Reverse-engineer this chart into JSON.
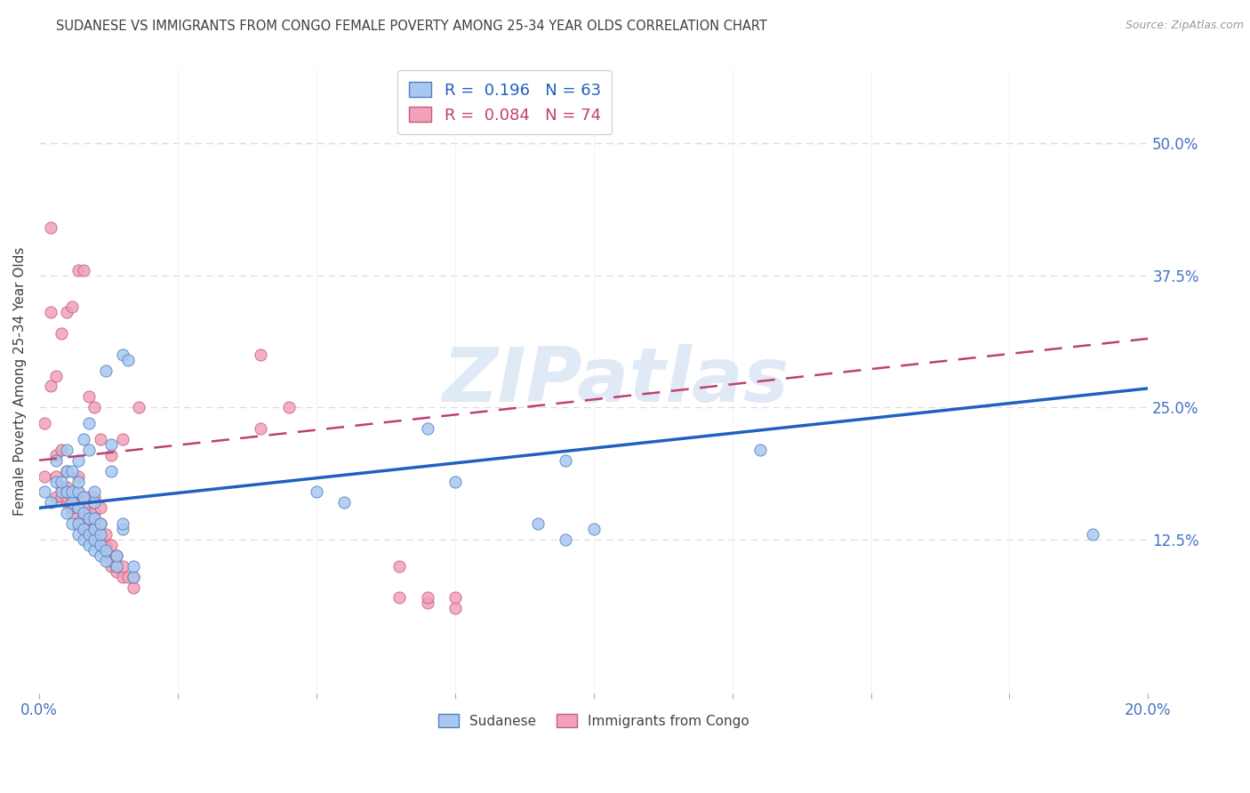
{
  "title": "SUDANESE VS IMMIGRANTS FROM CONGO FEMALE POVERTY AMONG 25-34 YEAR OLDS CORRELATION CHART",
  "source": "Source: ZipAtlas.com",
  "ylabel": "Female Poverty Among 25-34 Year Olds",
  "ytick_labels": [
    "50.0%",
    "37.5%",
    "25.0%",
    "12.5%"
  ],
  "ytick_values": [
    0.5,
    0.375,
    0.25,
    0.125
  ],
  "xlim": [
    0.0,
    0.2
  ],
  "ylim": [
    -0.02,
    0.57
  ],
  "legend_blue_R": "0.196",
  "legend_blue_N": "63",
  "legend_pink_R": "0.084",
  "legend_pink_N": "74",
  "legend_label_blue": "Sudanese",
  "legend_label_pink": "Immigrants from Congo",
  "blue_color": "#A8C8F0",
  "pink_color": "#F4A0B8",
  "blue_edge_color": "#5080C0",
  "pink_edge_color": "#C06080",
  "blue_line_color": "#2060C0",
  "pink_line_color": "#C04070",
  "grid_color": "#DDDDDD",
  "background_color": "#FFFFFF",
  "axis_label_color": "#4472C4",
  "title_color": "#404040",
  "watermark_text": "ZIPatlas",
  "watermark_color": "#C8D8F0",
  "blue_x": [
    0.001,
    0.002,
    0.003,
    0.003,
    0.004,
    0.004,
    0.005,
    0.005,
    0.005,
    0.005,
    0.006,
    0.006,
    0.006,
    0.006,
    0.007,
    0.007,
    0.007,
    0.007,
    0.007,
    0.007,
    0.008,
    0.008,
    0.008,
    0.008,
    0.008,
    0.009,
    0.009,
    0.009,
    0.009,
    0.009,
    0.01,
    0.01,
    0.01,
    0.01,
    0.01,
    0.01,
    0.011,
    0.011,
    0.011,
    0.011,
    0.012,
    0.012,
    0.012,
    0.013,
    0.013,
    0.014,
    0.014,
    0.015,
    0.015,
    0.015,
    0.016,
    0.017,
    0.017,
    0.05,
    0.055,
    0.07,
    0.075,
    0.09,
    0.095,
    0.095,
    0.1,
    0.13,
    0.19
  ],
  "blue_y": [
    0.17,
    0.16,
    0.18,
    0.2,
    0.17,
    0.18,
    0.15,
    0.17,
    0.19,
    0.21,
    0.14,
    0.16,
    0.17,
    0.19,
    0.13,
    0.14,
    0.155,
    0.17,
    0.18,
    0.2,
    0.125,
    0.135,
    0.15,
    0.165,
    0.22,
    0.12,
    0.13,
    0.145,
    0.21,
    0.235,
    0.115,
    0.125,
    0.135,
    0.145,
    0.16,
    0.17,
    0.11,
    0.12,
    0.13,
    0.14,
    0.105,
    0.115,
    0.285,
    0.19,
    0.215,
    0.1,
    0.11,
    0.135,
    0.14,
    0.3,
    0.295,
    0.09,
    0.1,
    0.17,
    0.16,
    0.23,
    0.18,
    0.14,
    0.2,
    0.125,
    0.135,
    0.21,
    0.13
  ],
  "pink_x": [
    0.001,
    0.001,
    0.002,
    0.002,
    0.002,
    0.003,
    0.003,
    0.003,
    0.003,
    0.004,
    0.004,
    0.004,
    0.004,
    0.005,
    0.005,
    0.005,
    0.005,
    0.005,
    0.006,
    0.006,
    0.006,
    0.006,
    0.007,
    0.007,
    0.007,
    0.007,
    0.007,
    0.008,
    0.008,
    0.008,
    0.008,
    0.008,
    0.009,
    0.009,
    0.009,
    0.009,
    0.009,
    0.01,
    0.01,
    0.01,
    0.01,
    0.01,
    0.01,
    0.011,
    0.011,
    0.011,
    0.011,
    0.011,
    0.012,
    0.012,
    0.012,
    0.013,
    0.013,
    0.013,
    0.013,
    0.014,
    0.014,
    0.014,
    0.015,
    0.015,
    0.015,
    0.016,
    0.017,
    0.017,
    0.018,
    0.04,
    0.04,
    0.045,
    0.065,
    0.065,
    0.07,
    0.07,
    0.075,
    0.075
  ],
  "pink_y": [
    0.185,
    0.235,
    0.34,
    0.27,
    0.42,
    0.165,
    0.185,
    0.205,
    0.28,
    0.165,
    0.175,
    0.21,
    0.32,
    0.16,
    0.165,
    0.175,
    0.19,
    0.34,
    0.15,
    0.155,
    0.165,
    0.345,
    0.14,
    0.155,
    0.17,
    0.185,
    0.38,
    0.135,
    0.145,
    0.155,
    0.165,
    0.38,
    0.13,
    0.14,
    0.15,
    0.165,
    0.26,
    0.125,
    0.13,
    0.14,
    0.15,
    0.165,
    0.25,
    0.12,
    0.13,
    0.14,
    0.155,
    0.22,
    0.115,
    0.12,
    0.13,
    0.1,
    0.105,
    0.12,
    0.205,
    0.095,
    0.1,
    0.11,
    0.09,
    0.1,
    0.22,
    0.09,
    0.08,
    0.09,
    0.25,
    0.23,
    0.3,
    0.25,
    0.07,
    0.1,
    0.065,
    0.07,
    0.06,
    0.07
  ]
}
